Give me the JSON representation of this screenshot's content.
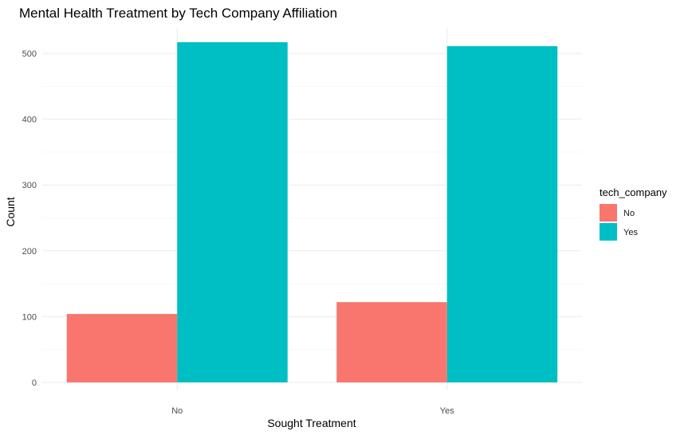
{
  "chart_data": {
    "type": "bar",
    "title": "Mental Health Treatment by Tech Company Affiliation",
    "xlabel": "Sought Treatment",
    "ylabel": "Count",
    "categories": [
      "No",
      "Yes"
    ],
    "series": [
      {
        "name": "No",
        "color": "#F8766D",
        "values": [
          104,
          122
        ]
      },
      {
        "name": "Yes",
        "color": "#00BFC4",
        "values": [
          517,
          511
        ]
      }
    ],
    "ylim": [
      0,
      525
    ],
    "yticks": [
      "0",
      "100",
      "200",
      "300",
      "400",
      "500"
    ],
    "grid": true,
    "legend": {
      "title": "tech_company",
      "position": "right"
    }
  }
}
